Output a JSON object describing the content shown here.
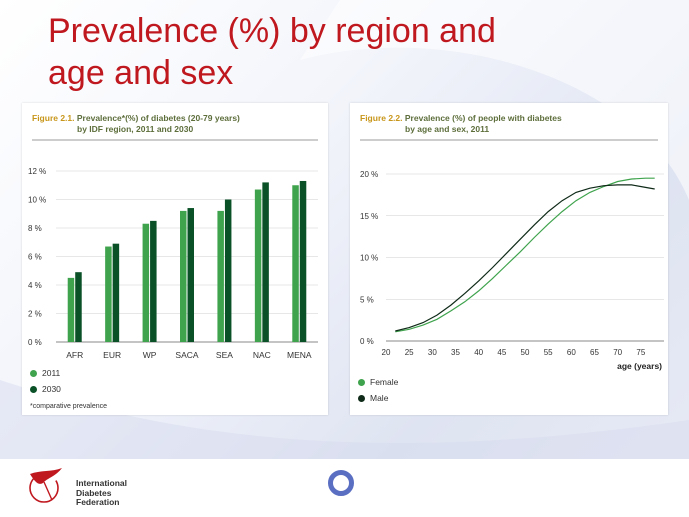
{
  "slide": {
    "title_line1": "Prevalence (%) by region and",
    "title_line2": "age and sex"
  },
  "colors": {
    "title_red": "#c0181f",
    "series_2011": "#3fa34d",
    "series_2030": "#0b5128",
    "female": "#3fa34d",
    "male": "#0f2a18",
    "figure_title": "#5d6e3b",
    "figure_number": "#c8961a",
    "ring_blue": "#5b6fc2"
  },
  "figure1": {
    "number": "Figure 2.1.",
    "title_line1": "Prevalence*(%) of diabetes (20-79 years)",
    "title_line2": "by IDF region, 2011 and 2030",
    "footnote": "*comparative prevalence"
  },
  "figure2": {
    "number": "Figure 2.2.",
    "title_line1": "Prevalence (%) of people with diabetes",
    "title_line2": "by age and sex, 2011"
  },
  "chart_data": [
    {
      "type": "bar",
      "title": "Prevalence*(%) of diabetes (20-79 years) by IDF region, 2011 and 2030",
      "categories": [
        "AFR",
        "EUR",
        "WP",
        "SACA",
        "SEA",
        "NAC",
        "MENA"
      ],
      "series": [
        {
          "name": "2011",
          "values": [
            4.5,
            6.7,
            8.3,
            9.2,
            9.2,
            10.7,
            11.0
          ]
        },
        {
          "name": "2030",
          "values": [
            4.9,
            6.9,
            8.5,
            9.4,
            10.0,
            11.2,
            11.3
          ]
        }
      ],
      "ylim": [
        0,
        12
      ],
      "yticks": [
        0,
        2,
        4,
        6,
        8,
        10,
        12
      ],
      "ytick_labels": [
        "0 %",
        "2 %",
        "4 %",
        "6 %",
        "8 %",
        "10 %",
        "12 %"
      ],
      "grid": true,
      "legend": "bottom-left"
    },
    {
      "type": "line",
      "title": "Prevalence (%) of people with diabetes by age and sex, 2011",
      "xlabel": "age (years)",
      "x": [
        22,
        25,
        28,
        31,
        34,
        37,
        40,
        43,
        46,
        49,
        52,
        55,
        58,
        61,
        64,
        67,
        70,
        73,
        76,
        78
      ],
      "series": [
        {
          "name": "Female",
          "values": [
            1.1,
            1.4,
            1.9,
            2.6,
            3.6,
            4.7,
            6.0,
            7.5,
            9.1,
            10.7,
            12.4,
            14.0,
            15.5,
            16.8,
            17.8,
            18.5,
            19.1,
            19.4,
            19.5,
            19.5
          ]
        },
        {
          "name": "Male",
          "values": [
            1.2,
            1.6,
            2.2,
            3.1,
            4.3,
            5.7,
            7.2,
            8.8,
            10.5,
            12.2,
            13.9,
            15.5,
            16.8,
            17.8,
            18.3,
            18.6,
            18.7,
            18.7,
            18.4,
            18.2
          ]
        }
      ],
      "xlim": [
        20,
        80
      ],
      "xticks": [
        20,
        25,
        30,
        35,
        40,
        45,
        50,
        55,
        60,
        65,
        70,
        75
      ],
      "ylim": [
        0,
        20
      ],
      "yticks": [
        0,
        5,
        10,
        15,
        20
      ],
      "ytick_labels": [
        "0 %",
        "5 %",
        "10 %",
        "15 %",
        "20 %"
      ],
      "grid": true,
      "legend": "bottom-left"
    }
  ],
  "footer": {
    "logo_line1": "International",
    "logo_line2": "Diabetes",
    "logo_line3": "Federation",
    "logo_icon": "hummingbird-icon",
    "decoration_icon": "ring-icon"
  }
}
